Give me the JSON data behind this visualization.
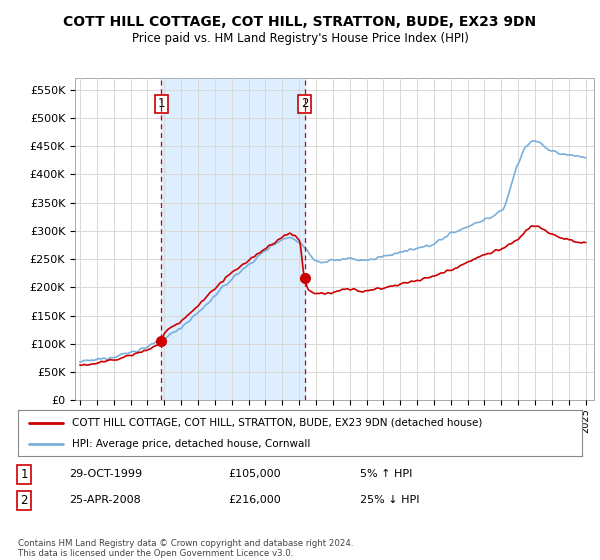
{
  "title": "COTT HILL COTTAGE, COT HILL, STRATTON, BUDE, EX23 9DN",
  "subtitle": "Price paid vs. HM Land Registry's House Price Index (HPI)",
  "ylim": [
    0,
    570000
  ],
  "yticks": [
    0,
    50000,
    100000,
    150000,
    200000,
    250000,
    300000,
    350000,
    400000,
    450000,
    500000,
    550000
  ],
  "ytick_labels": [
    "£0",
    "£50K",
    "£100K",
    "£150K",
    "£200K",
    "£250K",
    "£300K",
    "£350K",
    "£400K",
    "£450K",
    "£500K",
    "£550K"
  ],
  "sale1_date": 1999.83,
  "sale1_price": 105000,
  "sale1_label": "1",
  "sale2_date": 2008.32,
  "sale2_price": 216000,
  "sale2_label": "2",
  "hpi_color": "#7aafdc",
  "property_color": "#cc0000",
  "vline_color": "#cc0000",
  "shade_color": "#ddeeff",
  "legend_property": "COTT HILL COTTAGE, COT HILL, STRATTON, BUDE, EX23 9DN (detached house)",
  "legend_hpi": "HPI: Average price, detached house, Cornwall",
  "table_row1": [
    "1",
    "29-OCT-1999",
    "£105,000",
    "5% ↑ HPI"
  ],
  "table_row2": [
    "2",
    "25-APR-2008",
    "£216,000",
    "25% ↓ HPI"
  ],
  "footnote": "Contains HM Land Registry data © Crown copyright and database right 2024.\nThis data is licensed under the Open Government Licence v3.0.",
  "bg_color": "#ffffff",
  "grid_color": "#d8d8d8",
  "hpi_keypoints_x": [
    1995,
    1996,
    1997,
    1998,
    1999,
    2000,
    2001,
    2002,
    2003,
    2004,
    2005,
    2006,
    2007,
    2007.5,
    2008,
    2008.5,
    2009,
    2009.5,
    2010,
    2011,
    2012,
    2013,
    2014,
    2015,
    2016,
    2017,
    2018,
    2019,
    2020,
    2021,
    2021.5,
    2022,
    2023,
    2024,
    2025
  ],
  "hpi_keypoints_y": [
    68000,
    72000,
    78000,
    85000,
    95000,
    110000,
    130000,
    155000,
    185000,
    215000,
    240000,
    265000,
    285000,
    288000,
    280000,
    265000,
    248000,
    245000,
    248000,
    250000,
    248000,
    255000,
    262000,
    268000,
    278000,
    295000,
    308000,
    320000,
    335000,
    420000,
    450000,
    460000,
    440000,
    435000,
    430000
  ],
  "prop_keypoints_x": [
    1995,
    1996,
    1997,
    1998,
    1999,
    1999.83,
    2000,
    2001,
    2002,
    2003,
    2004,
    2005,
    2006,
    2007,
    2007.5,
    2008,
    2008.32,
    2008.6,
    2009,
    2009.5,
    2010,
    2011,
    2012,
    2013,
    2014,
    2015,
    2016,
    2017,
    2018,
    2019,
    2020,
    2021,
    2022,
    2023,
    2024,
    2025
  ],
  "prop_keypoints_y": [
    62000,
    66000,
    72000,
    80000,
    90000,
    105000,
    118000,
    140000,
    168000,
    198000,
    225000,
    248000,
    268000,
    288000,
    295000,
    285000,
    216000,
    195000,
    190000,
    188000,
    192000,
    196000,
    194000,
    200000,
    206000,
    212000,
    220000,
    232000,
    245000,
    258000,
    268000,
    285000,
    310000,
    295000,
    285000,
    278000
  ]
}
